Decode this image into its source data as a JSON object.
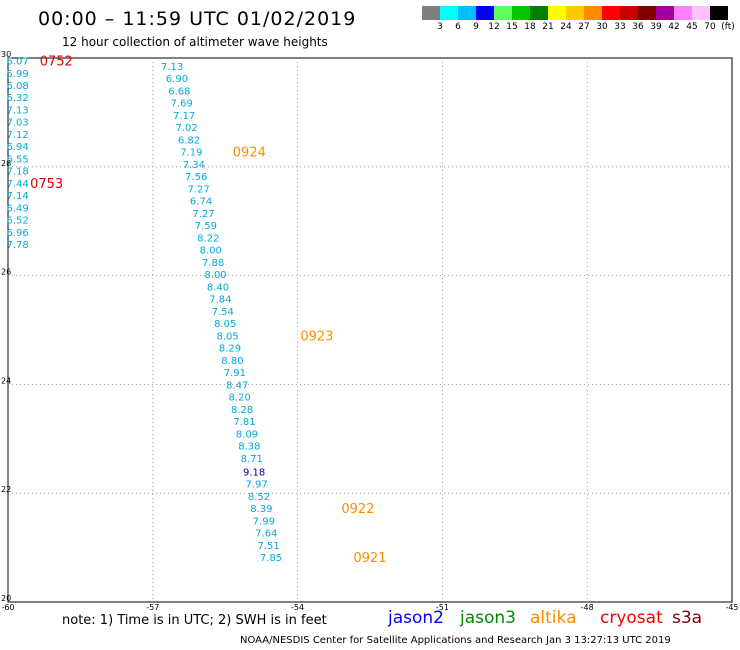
{
  "header": {
    "title": "00:00 – 11:59 UTC 01/02/2019",
    "subtitle": "12 hour collection of altimeter wave heights"
  },
  "colorbar": {
    "colors": [
      "#7f7f7f",
      "#00ffff",
      "#00bfff",
      "#0000ff",
      "#5fff5f",
      "#00c800",
      "#007f00",
      "#ffff00",
      "#ffc800",
      "#ff8c00",
      "#ff0000",
      "#c80000",
      "#7f0000",
      "#a000a0",
      "#ff80ff",
      "#ffc0ff",
      "#000000"
    ],
    "labels": [
      "3",
      "6",
      "9",
      "12",
      "15",
      "18",
      "21",
      "24",
      "27",
      "30",
      "33",
      "36",
      "39",
      "42",
      "45",
      "70",
      "(ft)"
    ]
  },
  "footer": {
    "note": "note:  1) Time is in UTC;  2) SWH is in feet",
    "satellites": [
      {
        "name": "jason2",
        "color": "#0000ff"
      },
      {
        "name": "jason3",
        "color": "#008800"
      },
      {
        "name": "altika",
        "color": "#ff8c00"
      },
      {
        "name": "cryosat",
        "color": "#ff0000"
      },
      {
        "name": "s3a",
        "color": "#800000"
      }
    ],
    "credit": "NOAA/NESDIS Center for Satellite Applications and Research    Jan  3 13:27:13 UTC 2019"
  },
  "chart_data": {
    "type": "scatter",
    "xlim": [
      -60,
      -45
    ],
    "ylim": [
      20,
      30
    ],
    "x_ticks": [
      "-60",
      "-57",
      "-54",
      "-51",
      "-48",
      "-45"
    ],
    "y_ticks": [
      "20",
      "22",
      "24",
      "26",
      "28",
      "30"
    ],
    "grid": "dotted",
    "series": [
      {
        "name": "cryosat",
        "color": "#00aadd",
        "points": [
          {
            "x": -59.8,
            "y": 29.95,
            "v": "6.07"
          },
          {
            "x": -59.8,
            "y": 29.72,
            "v": "5.99"
          },
          {
            "x": -59.8,
            "y": 29.5,
            "v": "6.08"
          },
          {
            "x": -59.8,
            "y": 29.28,
            "v": "6.32"
          },
          {
            "x": -59.8,
            "y": 29.05,
            "v": "7.13"
          },
          {
            "x": -59.8,
            "y": 28.83,
            "v": "7.03"
          },
          {
            "x": -59.8,
            "y": 28.6,
            "v": "7.12"
          },
          {
            "x": -59.8,
            "y": 28.38,
            "v": "6.94"
          },
          {
            "x": -59.8,
            "y": 28.15,
            "v": "6.55"
          },
          {
            "x": -59.8,
            "y": 27.93,
            "v": "7.18"
          },
          {
            "x": -59.8,
            "y": 27.7,
            "v": "7.44"
          },
          {
            "x": -59.8,
            "y": 27.48,
            "v": "7.14"
          },
          {
            "x": -59.8,
            "y": 27.25,
            "v": "6.49"
          },
          {
            "x": -59.8,
            "y": 27.03,
            "v": "6.52"
          },
          {
            "x": -59.8,
            "y": 26.8,
            "v": "6.96"
          },
          {
            "x": -59.8,
            "y": 26.58,
            "v": "7.78"
          }
        ]
      },
      {
        "name": "altika",
        "color": "#00aadd",
        "points": [
          {
            "x": -56.6,
            "y": 29.85,
            "v": "7.13"
          },
          {
            "x": -56.5,
            "y": 29.63,
            "v": "6.90"
          },
          {
            "x": -56.45,
            "y": 29.4,
            "v": "6.68"
          },
          {
            "x": -56.4,
            "y": 29.18,
            "v": "7.69"
          },
          {
            "x": -56.35,
            "y": 28.95,
            "v": "7.17"
          },
          {
            "x": -56.3,
            "y": 28.73,
            "v": "7.02"
          },
          {
            "x": -56.25,
            "y": 28.5,
            "v": "6.82"
          },
          {
            "x": -56.2,
            "y": 28.28,
            "v": "7.19"
          },
          {
            "x": -56.15,
            "y": 28.05,
            "v": "7.34"
          },
          {
            "x": -56.1,
            "y": 27.83,
            "v": "7.56"
          },
          {
            "x": -56.05,
            "y": 27.6,
            "v": "7.27"
          },
          {
            "x": -56.0,
            "y": 27.38,
            "v": "6.74"
          },
          {
            "x": -55.95,
            "y": 27.15,
            "v": "7.27"
          },
          {
            "x": -55.9,
            "y": 26.93,
            "v": "7.59"
          },
          {
            "x": -55.85,
            "y": 26.7,
            "v": "8.22"
          },
          {
            "x": -55.8,
            "y": 26.48,
            "v": "8.00"
          },
          {
            "x": -55.75,
            "y": 26.25,
            "v": "7.88"
          },
          {
            "x": -55.7,
            "y": 26.03,
            "v": "8.00"
          },
          {
            "x": -55.65,
            "y": 25.8,
            "v": "8.40"
          },
          {
            "x": -55.6,
            "y": 25.58,
            "v": "7.84"
          },
          {
            "x": -55.55,
            "y": 25.35,
            "v": "7.54"
          },
          {
            "x": -55.5,
            "y": 25.13,
            "v": "8.05"
          },
          {
            "x": -55.45,
            "y": 24.9,
            "v": "8.05"
          },
          {
            "x": -55.4,
            "y": 24.68,
            "v": "8.29"
          },
          {
            "x": -55.35,
            "y": 24.45,
            "v": "8.80"
          },
          {
            "x": -55.3,
            "y": 24.23,
            "v": "7.91"
          },
          {
            "x": -55.25,
            "y": 24.0,
            "v": "8.47"
          },
          {
            "x": -55.2,
            "y": 23.78,
            "v": "8.20"
          },
          {
            "x": -55.15,
            "y": 23.55,
            "v": "8.28"
          },
          {
            "x": -55.1,
            "y": 23.33,
            "v": "7.81"
          },
          {
            "x": -55.05,
            "y": 23.1,
            "v": "8.09"
          },
          {
            "x": -55.0,
            "y": 22.88,
            "v": "8.38"
          },
          {
            "x": -54.95,
            "y": 22.65,
            "v": "8.71"
          },
          {
            "x": -54.9,
            "y": 22.4,
            "v": "9.18"
          },
          {
            "x": -54.85,
            "y": 22.18,
            "v": "7.97"
          },
          {
            "x": -54.8,
            "y": 21.95,
            "v": "8.52"
          },
          {
            "x": -54.75,
            "y": 21.73,
            "v": "8.39"
          },
          {
            "x": -54.7,
            "y": 21.5,
            "v": "7.99"
          },
          {
            "x": -54.65,
            "y": 21.28,
            "v": "7.64"
          },
          {
            "x": -54.6,
            "y": 21.05,
            "v": "7.51"
          },
          {
            "x": -54.55,
            "y": 20.83,
            "v": "7.85"
          }
        ]
      }
    ],
    "time_labels": [
      {
        "x": -59.0,
        "y": 29.95,
        "v": "0752",
        "color": "#dd0000"
      },
      {
        "x": -59.2,
        "y": 27.7,
        "v": "0753",
        "color": "#dd0000"
      },
      {
        "x": -55.0,
        "y": 28.28,
        "v": "0924",
        "color": "#ff8c00"
      },
      {
        "x": -53.6,
        "y": 24.9,
        "v": "0923",
        "color": "#ff8c00"
      },
      {
        "x": -52.75,
        "y": 21.73,
        "v": "0922",
        "color": "#ff8c00"
      },
      {
        "x": -52.5,
        "y": 20.83,
        "v": "0921",
        "color": "#ff8c00"
      }
    ]
  }
}
